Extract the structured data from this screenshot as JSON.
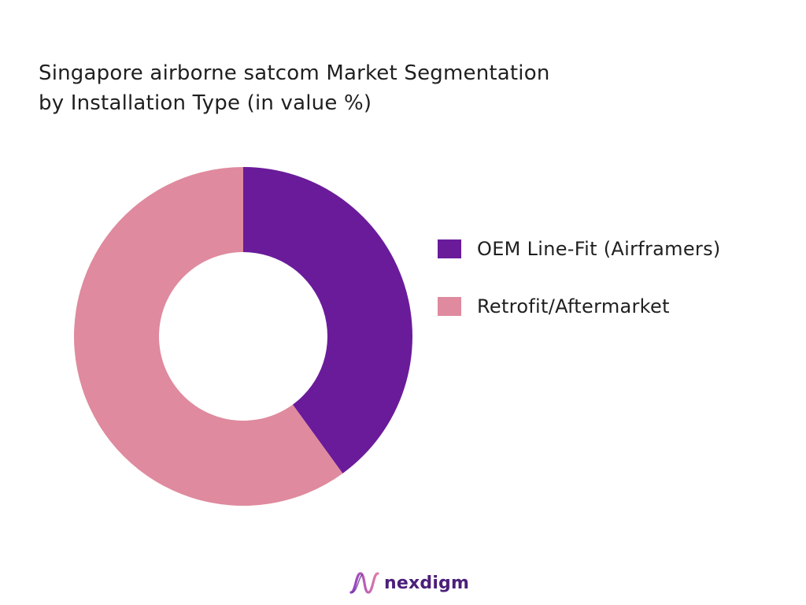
{
  "chart_data": {
    "type": "pie",
    "title_line1": "Singapore airborne satcom Market Segmentation",
    "title_line2": "by Installation Type (in value %)",
    "categories": [
      "OEM Line-Fit (Airframers)",
      "Retrofit/Aftermarket"
    ],
    "values": [
      40,
      60
    ],
    "colors": [
      "#6a1b9a",
      "#df8a9e"
    ],
    "legend_placement": "right",
    "donut": true
  },
  "brand": {
    "name": "nexdigm",
    "color": "#4b1f7a"
  }
}
